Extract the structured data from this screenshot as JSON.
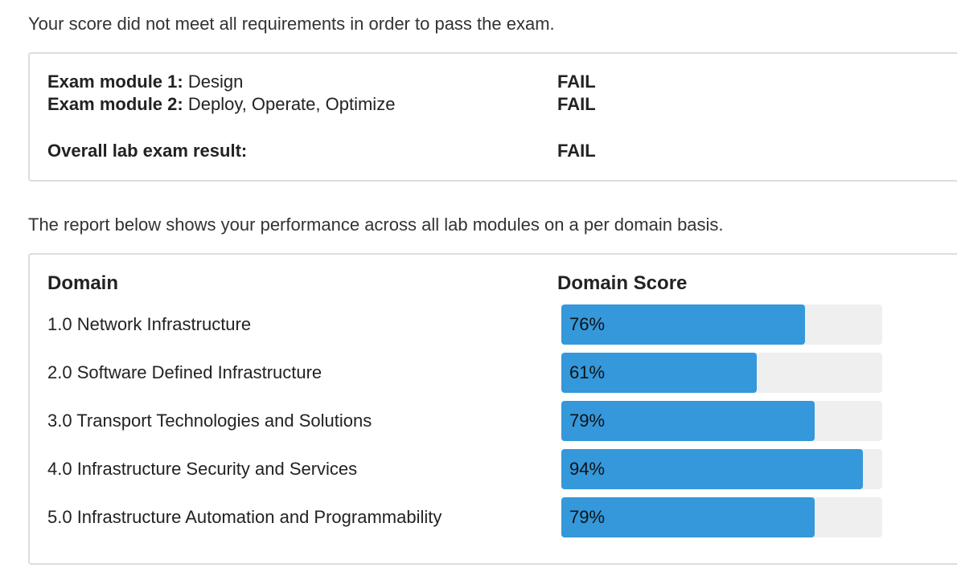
{
  "intro": "Your score did not meet all requirements in order to pass the exam.",
  "modules": [
    {
      "label": "Exam module 1:",
      "name": "Design",
      "result": "FAIL"
    },
    {
      "label": "Exam module 2:",
      "name": "Deploy, Operate, Optimize",
      "result": "FAIL"
    }
  ],
  "overall": {
    "label": "Overall lab exam result:",
    "result": "FAIL"
  },
  "report_intro": "The report below shows your performance across all lab modules on a per domain basis.",
  "domains": {
    "headers": [
      "Domain",
      "Domain Score"
    ],
    "rows": [
      {
        "name": "1.0 Network Infrastructure",
        "score": 76,
        "score_label": "76%"
      },
      {
        "name": "2.0 Software Defined Infrastructure",
        "score": 61,
        "score_label": "61%"
      },
      {
        "name": "3.0 Transport Technologies and Solutions",
        "score": 79,
        "score_label": "79%"
      },
      {
        "name": "4.0 Infrastructure Security and Services",
        "score": 94,
        "score_label": "94%"
      },
      {
        "name": "5.0 Infrastructure Automation and Programmability",
        "score": 79,
        "score_label": "79%"
      }
    ]
  }
}
